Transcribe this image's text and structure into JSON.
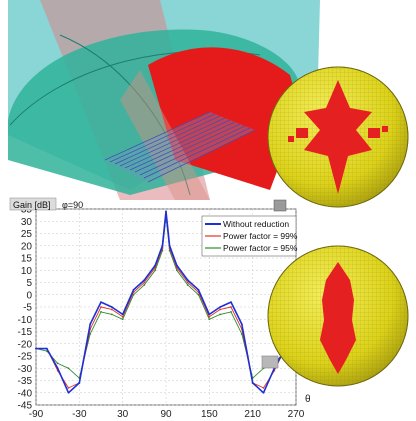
{
  "chart_data": {
    "type": "line",
    "panel_label": "Gain [dB]",
    "phi_label": "φ=90",
    "xlabel": "θ",
    "xlim": [
      -90,
      270
    ],
    "ylim": [
      -45,
      35
    ],
    "x_ticks": [
      -90,
      -30,
      30,
      90,
      150,
      210,
      270
    ],
    "y_ticks": [
      35,
      30,
      25,
      20,
      15,
      10,
      5,
      0,
      -5,
      -10,
      -15,
      -20,
      -25,
      -30,
      -35,
      -40,
      -45
    ],
    "grid": true,
    "legend_position": "top-right",
    "series": [
      {
        "name": "Without reduction",
        "color": "#1f2fd6",
        "x": [
          -90,
          -75,
          -60,
          -45,
          -30,
          -15,
          0,
          15,
          30,
          45,
          60,
          75,
          85,
          90,
          95,
          105,
          120,
          135,
          150,
          165,
          180,
          195,
          210,
          225,
          240,
          255,
          265
        ],
        "y": [
          -22,
          -22,
          -30,
          -40,
          -36,
          -12,
          -3,
          -5,
          -8,
          2,
          6,
          12,
          20,
          34,
          20,
          12,
          6,
          2,
          -8,
          -5,
          -3,
          -12,
          -36,
          -40,
          -30,
          -22,
          -22
        ]
      },
      {
        "name": "Power factor = 99%",
        "color": "#e0322a",
        "x": [
          -90,
          -75,
          -60,
          -45,
          -30,
          -15,
          0,
          15,
          30,
          45,
          60,
          75,
          85,
          90,
          95,
          105,
          120,
          135,
          150,
          165,
          180,
          195,
          210,
          225,
          240,
          255,
          265
        ],
        "y": [
          -22,
          -22,
          -31,
          -38,
          -36,
          -14,
          -5,
          -6,
          -9,
          1,
          5,
          11,
          19,
          33,
          19,
          11,
          5,
          1,
          -9,
          -6,
          -5,
          -14,
          -36,
          -38,
          -31,
          -22,
          -22
        ]
      },
      {
        "name": "Power factor = 95%",
        "color": "#2e8b2e",
        "x": [
          -90,
          -75,
          -60,
          -45,
          -30,
          -15,
          0,
          15,
          30,
          45,
          60,
          75,
          85,
          90,
          95,
          105,
          120,
          135,
          150,
          165,
          180,
          195,
          210,
          225,
          240,
          255,
          265
        ],
        "y": [
          -22,
          -23,
          -28,
          -30,
          -34,
          -16,
          -7,
          -8,
          -10,
          0,
          4,
          10,
          18,
          32,
          18,
          10,
          4,
          0,
          -10,
          -8,
          -7,
          -16,
          -34,
          -30,
          -28,
          -23,
          -22
        ]
      }
    ]
  },
  "colors": {
    "dome": "#2fb39a",
    "plane": "#7fd6d6",
    "red_wedge": "#e51b1b",
    "sphere_yellow": "#e8e01a",
    "grid_blue": "#4a56b0"
  }
}
